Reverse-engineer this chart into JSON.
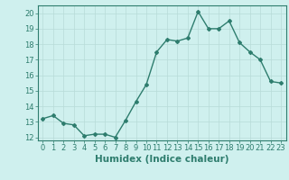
{
  "xlabel": "Humidex (Indice chaleur)",
  "ylabel": "",
  "x": [
    0,
    1,
    2,
    3,
    4,
    5,
    6,
    7,
    8,
    9,
    10,
    11,
    12,
    13,
    14,
    15,
    16,
    17,
    18,
    19,
    20,
    21,
    22,
    23
  ],
  "y": [
    13.2,
    13.4,
    12.9,
    12.8,
    12.1,
    12.2,
    12.2,
    12.0,
    13.1,
    14.3,
    15.4,
    17.5,
    18.3,
    18.2,
    18.4,
    20.1,
    19.0,
    19.0,
    19.5,
    18.1,
    17.5,
    17.0,
    15.6,
    15.5
  ],
  "ylim": [
    11.8,
    20.5
  ],
  "yticks": [
    12,
    13,
    14,
    15,
    16,
    17,
    18,
    19,
    20
  ],
  "xticks": [
    0,
    1,
    2,
    3,
    4,
    5,
    6,
    7,
    8,
    9,
    10,
    11,
    12,
    13,
    14,
    15,
    16,
    17,
    18,
    19,
    20,
    21,
    22,
    23
  ],
  "line_color": "#2e7d6e",
  "marker": "D",
  "marker_size": 2.0,
  "line_width": 1.0,
  "bg_color": "#cff0ee",
  "grid_color": "#b8dbd8",
  "tick_label_size": 6.0,
  "xlabel_size": 7.5,
  "axis_color": "#2e7d6e"
}
